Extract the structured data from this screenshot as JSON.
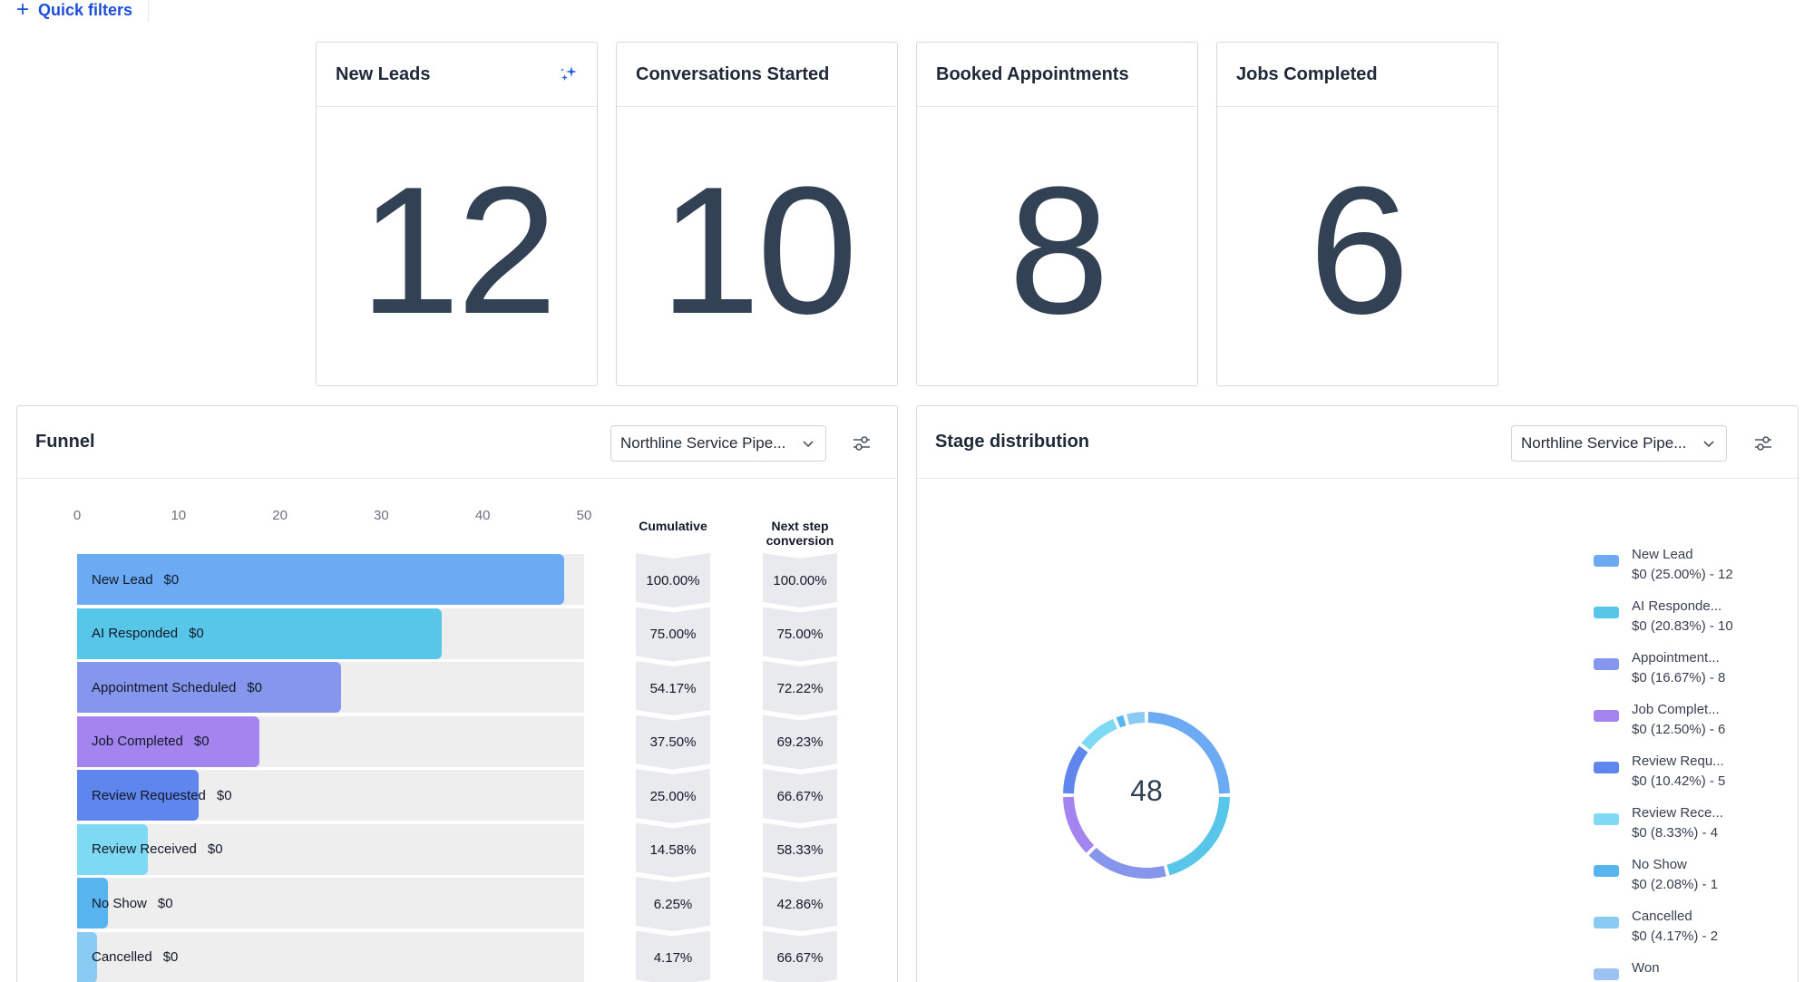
{
  "toolbar": {
    "quick_filters_label": "Quick filters",
    "quick_filters_icon": "plus-icon"
  },
  "stats": [
    {
      "title": "New Leads",
      "value": "12",
      "icon": "sparkle-icon"
    },
    {
      "title": "Conversations Started",
      "value": "10"
    },
    {
      "title": "Booked Appointments",
      "value": "8"
    },
    {
      "title": "Jobs Completed",
      "value": "6"
    }
  ],
  "funnel": {
    "title": "Funnel",
    "pipeline_select": "Northline Service Pipe...",
    "columns": {
      "cumulative": "Cumulative",
      "next_step": [
        "Next step",
        "conversion"
      ]
    },
    "axis_ticks": [
      "0",
      "10",
      "20",
      "30",
      "40",
      "50"
    ],
    "colors": {
      "track": "#eeeeef",
      "chevron": "#e9eaee"
    }
  },
  "stage_distribution": {
    "title": "Stage distribution",
    "pipeline_select": "Northline Service Pipe...",
    "total": "48",
    "legend": [
      {
        "name": "New Lead",
        "detail": "$0 (25.00%) - 12"
      },
      {
        "name": "AI Responde...",
        "detail": "$0 (20.83%) - 10"
      },
      {
        "name": "Appointment...",
        "detail": "$0 (16.67%) - 8"
      },
      {
        "name": "Job Complet...",
        "detail": "$0 (12.50%) - 6"
      },
      {
        "name": "Review Requ...",
        "detail": "$0 (10.42%) - 5"
      },
      {
        "name": "Review Rece...",
        "detail": "$0 (8.33%) - 4"
      },
      {
        "name": "No Show",
        "detail": "$0 (2.08%) - 1"
      },
      {
        "name": "Cancelled",
        "detail": "$0 (4.17%) - 2"
      },
      {
        "name": "Won",
        "detail": ""
      }
    ]
  },
  "chart_data": [
    {
      "type": "bar",
      "orientation": "horizontal",
      "categories": [
        "New Lead",
        "AI Responded",
        "Appointment Scheduled",
        "Job Completed",
        "Review Requested",
        "Review Received",
        "No Show",
        "Cancelled"
      ],
      "values": [
        48,
        36,
        26,
        18,
        12,
        7,
        3,
        2
      ],
      "value_labels": [
        "$0",
        "$0",
        "$0",
        "$0",
        "$0",
        "$0",
        "$0",
        "$0"
      ],
      "cumulative": [
        "100.00%",
        "75.00%",
        "54.17%",
        "37.50%",
        "25.00%",
        "14.58%",
        "6.25%",
        "4.17%"
      ],
      "next_step_conversion": [
        "100.00%",
        "75.00%",
        "72.22%",
        "69.23%",
        "66.67%",
        "58.33%",
        "42.86%",
        "66.67%"
      ],
      "xlim": [
        0,
        50
      ],
      "colors": [
        "#6cabf3",
        "#58c6e8",
        "#8796ed",
        "#a484ef",
        "#5f86ec",
        "#7ed9f2",
        "#58b4ee",
        "#8acbf4"
      ]
    },
    {
      "type": "pie",
      "style": "donut",
      "categories": [
        "New Lead",
        "AI Responded",
        "Appointment Scheduled",
        "Job Completed",
        "Review Requested",
        "Review Received",
        "No Show",
        "Cancelled"
      ],
      "values": [
        12,
        10,
        8,
        6,
        5,
        4,
        1,
        2
      ],
      "colors": [
        "#6cabf3",
        "#58c6e8",
        "#8796ed",
        "#a484ef",
        "#5f86ec",
        "#7ed9f2",
        "#58b4ee",
        "#8acbf4",
        "#9cc2f3"
      ]
    }
  ]
}
